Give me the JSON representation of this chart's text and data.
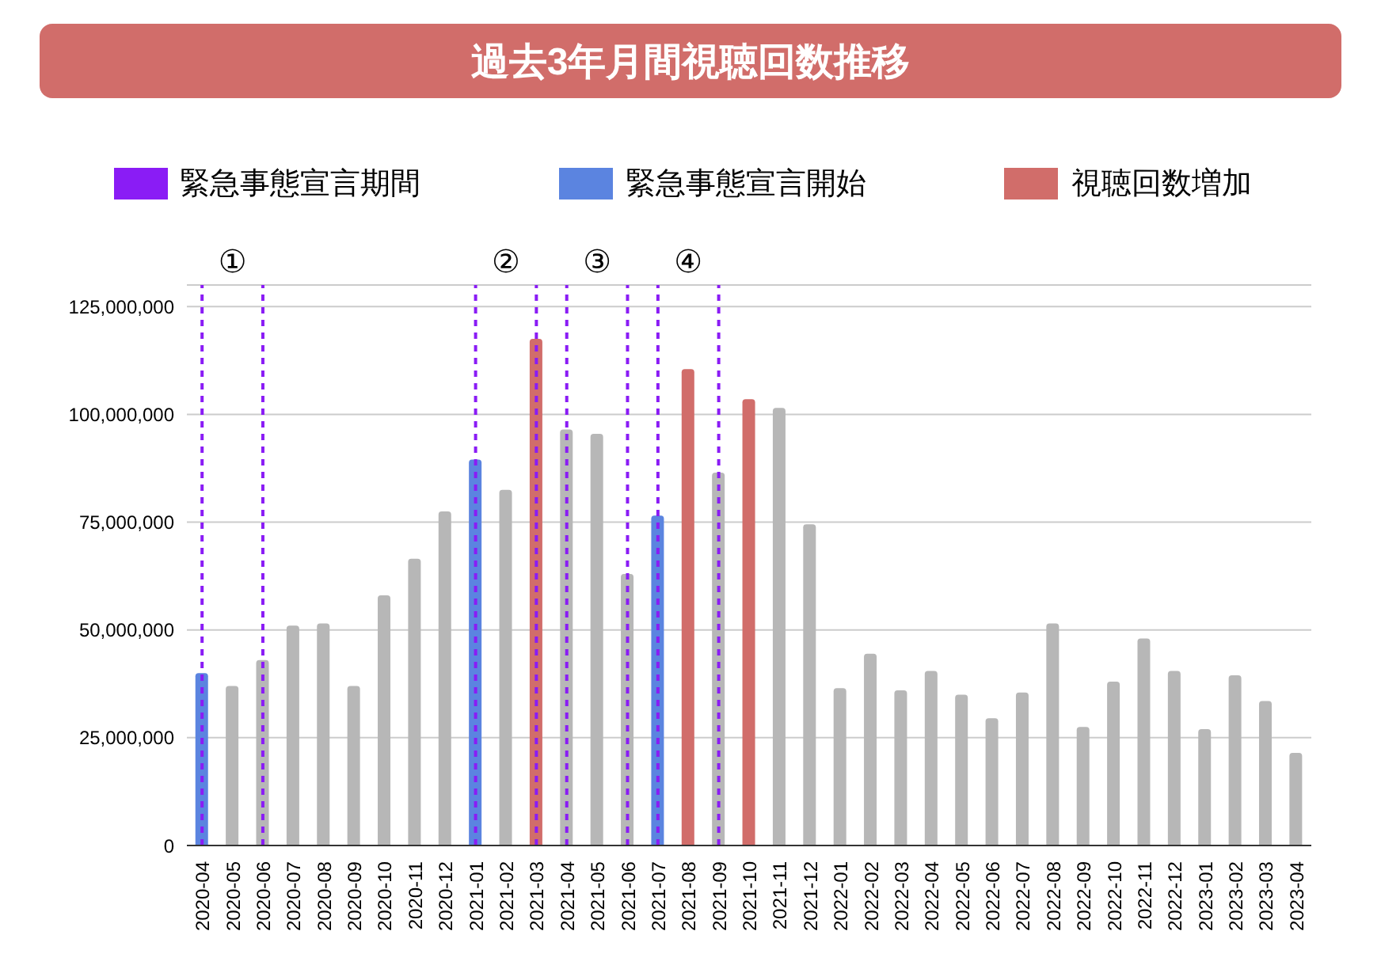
{
  "chart_data": {
    "type": "bar",
    "title": "過去3年月間視聴回数推移",
    "categories": [
      "2020-04",
      "2020-05",
      "2020-06",
      "2020-07",
      "2020-08",
      "2020-09",
      "2020-10",
      "2020-11",
      "2020-12",
      "2021-01",
      "2021-02",
      "2021-03",
      "2021-04",
      "2021-05",
      "2021-06",
      "2021-07",
      "2021-08",
      "2021-09",
      "2021-10",
      "2021-11",
      "2021-12",
      "2022-01",
      "2022-02",
      "2022-03",
      "2022-04",
      "2022-05",
      "2022-06",
      "2022-07",
      "2022-08",
      "2022-09",
      "2022-10",
      "2022-11",
      "2022-12",
      "2023-01",
      "2023-02",
      "2023-03",
      "2023-04"
    ],
    "stacked": true,
    "series": [
      {
        "name": "緊急事態宣言期間",
        "color": "#8a1cf5",
        "values": [
          null,
          null,
          null,
          null,
          null,
          null,
          null,
          null,
          null,
          null,
          null,
          null,
          null,
          null,
          null,
          null,
          null,
          null,
          null,
          null,
          null,
          null,
          null,
          null,
          null,
          null,
          null,
          null,
          null,
          null,
          null,
          null,
          null,
          null,
          null,
          null,
          null
        ]
      },
      {
        "name": "緊急事態宣言開始",
        "color": "#5b84e0",
        "values": [
          40000000,
          null,
          null,
          null,
          null,
          null,
          null,
          null,
          null,
          89500000,
          null,
          null,
          null,
          null,
          null,
          76500000,
          null,
          null,
          null,
          null,
          null,
          null,
          null,
          null,
          null,
          null,
          null,
          null,
          null,
          null,
          null,
          null,
          null,
          null,
          null,
          null,
          null
        ]
      },
      {
        "name": "視聴回数増加",
        "color": "#d16d6a",
        "values": [
          null,
          null,
          null,
          null,
          null,
          null,
          null,
          null,
          null,
          null,
          null,
          117500000,
          null,
          null,
          null,
          null,
          110500000,
          null,
          103500000,
          null,
          null,
          null,
          null,
          null,
          null,
          null,
          null,
          null,
          null,
          null,
          null,
          null,
          null,
          null,
          null,
          null,
          null
        ]
      },
      {
        "color": "#b7b7b7",
        "values": [
          null,
          37000000,
          43000000,
          51000000,
          51500000,
          37000000,
          58000000,
          66500000,
          77500000,
          null,
          82500000,
          null,
          96500000,
          95500000,
          63000000,
          null,
          null,
          86500000,
          null,
          101500000,
          74500000,
          36500000,
          44500000,
          36000000,
          40500000,
          35000000,
          29500000,
          35500000,
          51500000,
          27500000,
          38000000,
          48000000,
          40500000,
          27000000,
          39500000,
          33500000,
          21500000
        ]
      }
    ],
    "ylim": [
      0,
      130000000
    ],
    "yticks": [
      0,
      {
        "value": 25000000,
        "label": "25,000,000"
      },
      {
        "value": 50000000,
        "label": "50,000,000"
      },
      {
        "value": 75000000,
        "label": "75,000,000"
      },
      {
        "value": 100000000,
        "label": "100,000,000"
      },
      {
        "value": 125000000,
        "label": "125,000,000"
      }
    ],
    "grid": "y",
    "legend": "top",
    "ref_lines": [
      {
        "axis": "x",
        "value": "2020-04",
        "color": "#8a1cf5",
        "line_style": "dashed"
      },
      {
        "axis": "x",
        "value": "2020-06",
        "color": "#8a1cf5",
        "line_style": "dashed"
      },
      {
        "axis": "x",
        "value": "2021-01",
        "color": "#8a1cf5",
        "line_style": "dashed"
      },
      {
        "axis": "x",
        "value": "2021-03",
        "color": "#8a1cf5",
        "line_style": "dashed"
      },
      {
        "axis": "x",
        "value": "2021-04",
        "color": "#8a1cf5",
        "line_style": "dashed"
      },
      {
        "axis": "x",
        "value": "2021-06",
        "color": "#8a1cf5",
        "line_style": "dashed"
      },
      {
        "axis": "x",
        "value": "2021-07",
        "color": "#8a1cf5",
        "line_style": "dashed"
      },
      {
        "axis": "x",
        "value": "2021-09",
        "color": "#8a1cf5",
        "line_style": "dashed"
      }
    ],
    "annotations": [
      "①",
      "②",
      "③",
      "④"
    ]
  }
}
